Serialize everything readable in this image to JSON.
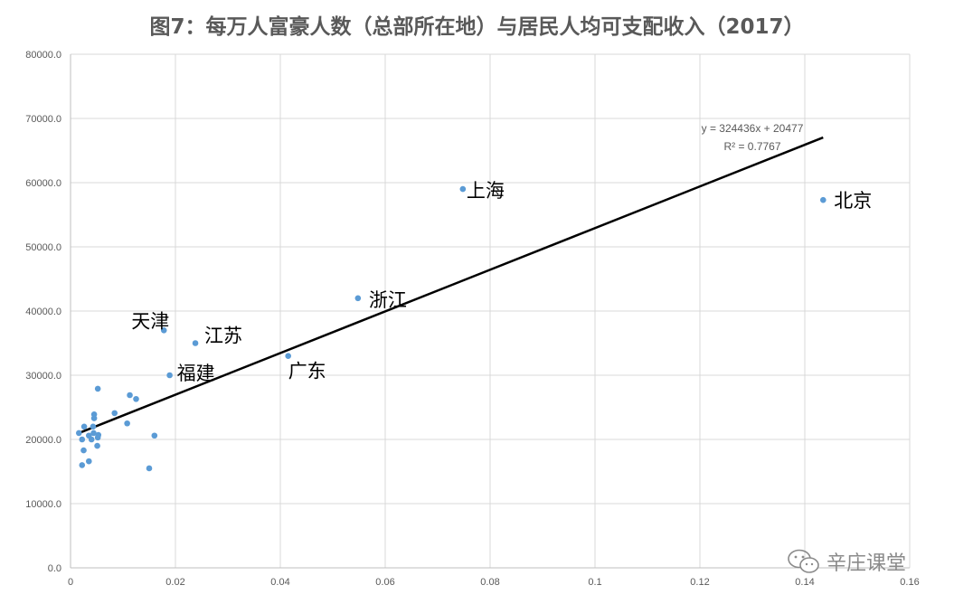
{
  "chart_data": {
    "type": "scatter",
    "title": "图7：每万人富豪人数（总部所在地）与居民人均可支配收入（2017）",
    "xlim": [
      0,
      0.16
    ],
    "ylim": [
      0,
      80000
    ],
    "x_ticks": [
      "0",
      "0.02",
      "0.04",
      "0.06",
      "0.08",
      "0.1",
      "0.12",
      "0.14",
      "0.16"
    ],
    "y_ticks": [
      "0.0",
      "10000.0",
      "20000.0",
      "30000.0",
      "40000.0",
      "50000.0",
      "60000.0",
      "70000.0",
      "80000.0"
    ],
    "grid": true,
    "point_color": "#5b9bd5",
    "trendline": {
      "slope": 324436,
      "intercept": 20477,
      "x_range": [
        0.0015,
        0.1435
      ],
      "equation": "y = 324436x + 20477",
      "r_squared": "R² = 0.7767"
    },
    "labeled_points": [
      {
        "label": "北京",
        "x": 0.1435,
        "y": 57300
      },
      {
        "label": "上海",
        "x": 0.0748,
        "y": 59000
      },
      {
        "label": "浙江",
        "x": 0.0548,
        "y": 42000
      },
      {
        "label": "广东",
        "x": 0.0415,
        "y": 33000
      },
      {
        "label": "天津",
        "x": 0.0178,
        "y": 37000
      },
      {
        "label": "江苏",
        "x": 0.0238,
        "y": 35000
      },
      {
        "label": "福建",
        "x": 0.0189,
        "y": 30000
      }
    ],
    "other_points": [
      {
        "x": 0.0016,
        "y": 21000
      },
      {
        "x": 0.0022,
        "y": 20000
      },
      {
        "x": 0.0025,
        "y": 18300
      },
      {
        "x": 0.0026,
        "y": 22000
      },
      {
        "x": 0.0022,
        "y": 16000
      },
      {
        "x": 0.0035,
        "y": 16600
      },
      {
        "x": 0.0035,
        "y": 20600
      },
      {
        "x": 0.004,
        "y": 20000
      },
      {
        "x": 0.0043,
        "y": 22000
      },
      {
        "x": 0.0044,
        "y": 21000
      },
      {
        "x": 0.0045,
        "y": 23300
      },
      {
        "x": 0.0045,
        "y": 23900
      },
      {
        "x": 0.0051,
        "y": 19000
      },
      {
        "x": 0.0052,
        "y": 20300
      },
      {
        "x": 0.0053,
        "y": 20700
      },
      {
        "x": 0.0052,
        "y": 27900
      },
      {
        "x": 0.0084,
        "y": 24100
      },
      {
        "x": 0.0108,
        "y": 22500
      },
      {
        "x": 0.0113,
        "y": 26900
      },
      {
        "x": 0.0125,
        "y": 26300
      },
      {
        "x": 0.015,
        "y": 15500
      },
      {
        "x": 0.016,
        "y": 20600
      }
    ]
  },
  "watermark": {
    "text": "辛庄课堂",
    "icon": "wechat-icon"
  }
}
